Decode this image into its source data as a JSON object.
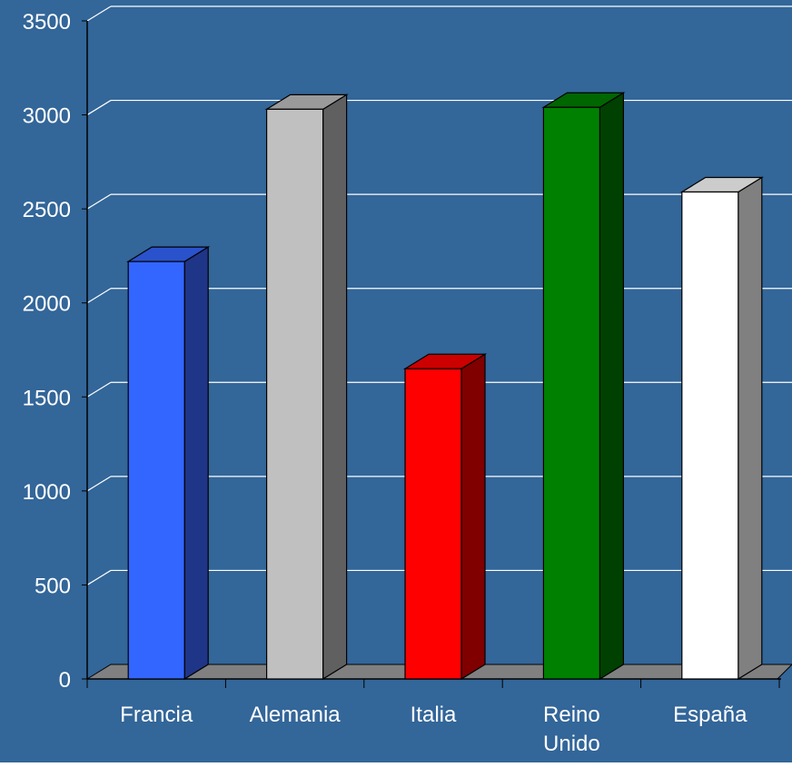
{
  "chart_data": {
    "type": "bar",
    "style": "3d-column",
    "categories": [
      "Francia",
      "Alemania",
      "Italia",
      "Reino Unido",
      "España"
    ],
    "category_lines": [
      [
        "Francia"
      ],
      [
        "Alemania"
      ],
      [
        "Italia"
      ],
      [
        "Reino",
        "Unido"
      ],
      [
        "España"
      ]
    ],
    "values": [
      2220,
      3030,
      1650,
      3040,
      2590
    ],
    "bar_colors": [
      {
        "front": "#3366FF",
        "side": "#1F3587",
        "top": "#2A52CC"
      },
      {
        "front": "#C0C0C0",
        "side": "#606060",
        "top": "#9A9A9A"
      },
      {
        "front": "#FF0000",
        "side": "#800000",
        "top": "#CC0000"
      },
      {
        "front": "#008000",
        "side": "#004000",
        "top": "#006600"
      },
      {
        "front": "#FFFFFF",
        "side": "#808080",
        "top": "#CCCCCC"
      }
    ],
    "yticks": [
      "0",
      "500",
      "1000",
      "1500",
      "2000",
      "2500",
      "3000",
      "3500"
    ],
    "ylim": [
      0,
      3500
    ],
    "grid": true,
    "legend": "none",
    "title": "",
    "xlabel": "",
    "ylabel": "",
    "colors": {
      "background": "#336699",
      "gridline": "#FFFFFF",
      "floor": "#808080",
      "text": "#FFFFFF"
    }
  }
}
